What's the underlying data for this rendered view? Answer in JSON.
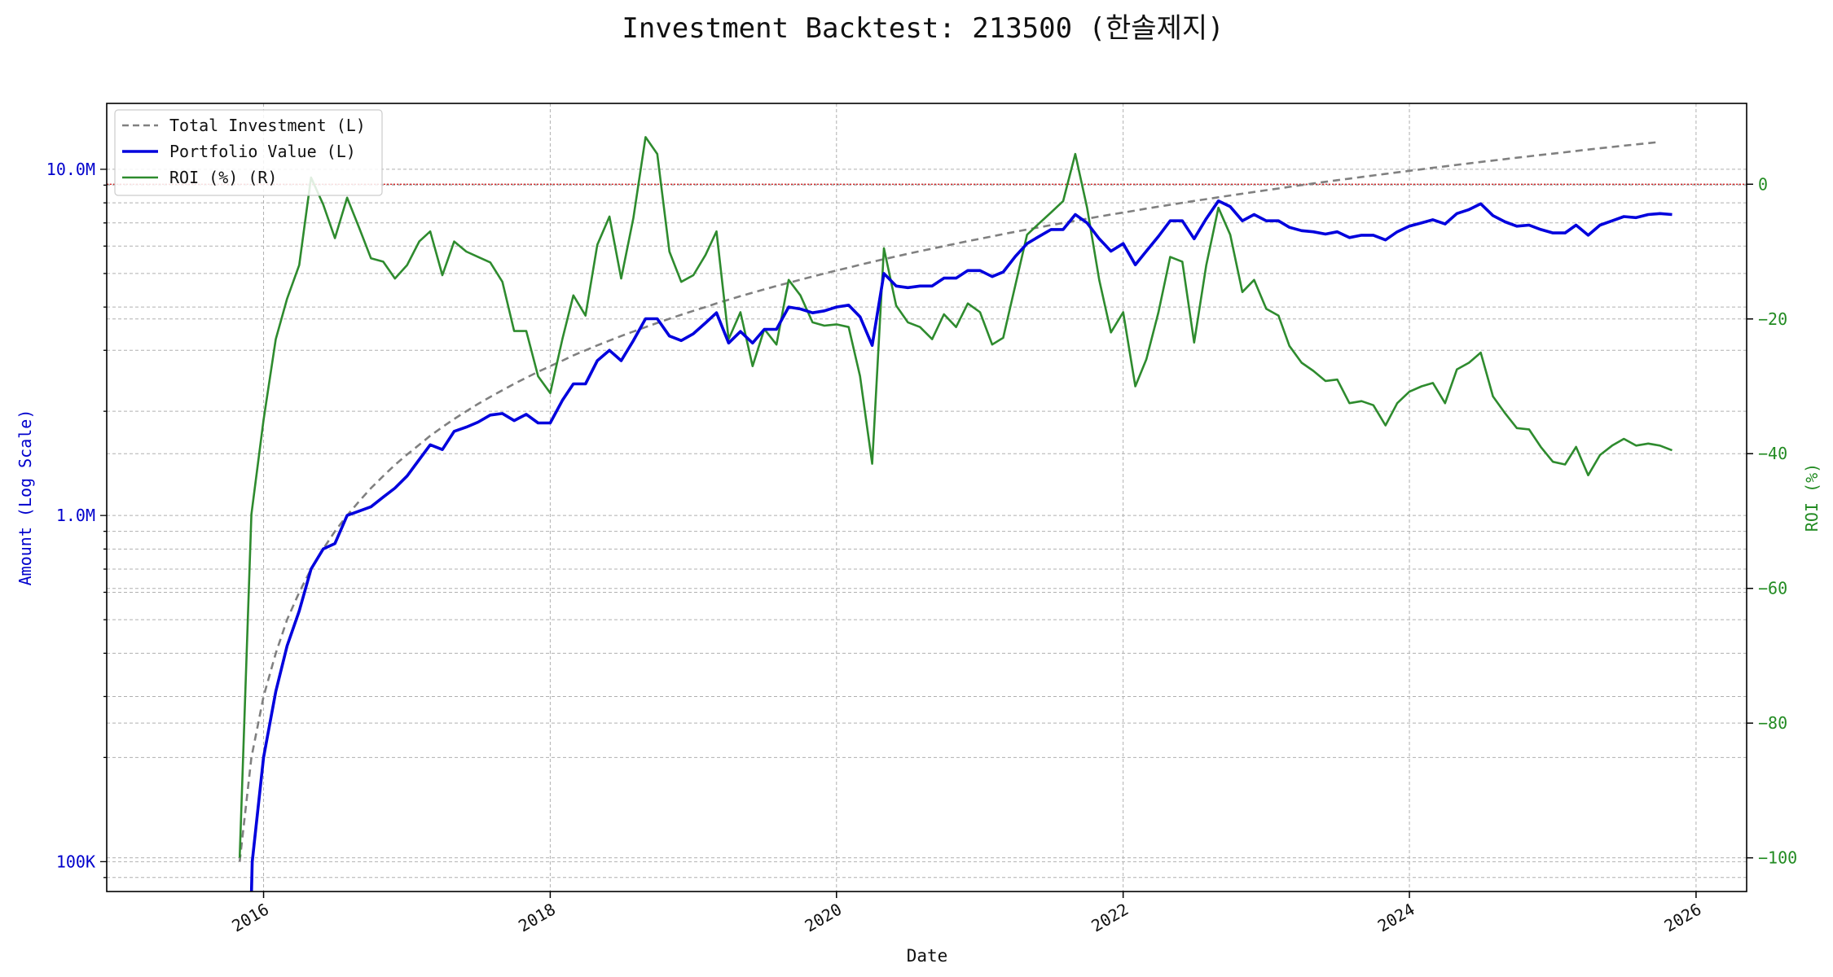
{
  "chart_data": {
    "type": "line",
    "title": "Investment Backtest: 213500 (한솔제지)",
    "xlabel": "Date",
    "ylabel_left": "Amount (Log Scale)",
    "ylabel_right": "ROI (%)",
    "x_range": [
      "2014-11-27",
      "2026-05-10"
    ],
    "y_left_scale": "log",
    "y_left_range": [
      82000,
      15500000
    ],
    "y_right_range": [
      -105,
      12
    ],
    "y_left_ticks": [
      {
        "value": 100000,
        "label": "100K"
      },
      {
        "value": 1000000,
        "label": "1.0M"
      },
      {
        "value": 10000000,
        "label": "10.0M"
      }
    ],
    "y_right_ticks": [
      {
        "value": 0,
        "label": "0"
      },
      {
        "value": -20,
        "label": "−20"
      },
      {
        "value": -40,
        "label": "−40"
      },
      {
        "value": -60,
        "label": "−60"
      },
      {
        "value": -80,
        "label": "−80"
      },
      {
        "value": -100,
        "label": "−100"
      }
    ],
    "x_ticks": [
      {
        "value": "2016-01-01",
        "label": "2016"
      },
      {
        "value": "2018-01-01",
        "label": "2018"
      },
      {
        "value": "2020-01-01",
        "label": "2020"
      },
      {
        "value": "2022-01-01",
        "label": "2022"
      },
      {
        "value": "2024-01-01",
        "label": "2024"
      },
      {
        "value": "2026-01-01",
        "label": "2026"
      }
    ],
    "grid": true,
    "legend_position": "top-left",
    "reference_line": {
      "axis": "right",
      "value": 0,
      "color": "#d62728",
      "style": "dotted"
    },
    "colors": {
      "left_axis": "#0000cc",
      "right_axis": "#228b22",
      "total_investment": "#808080",
      "portfolio": "#0000dd",
      "roi": "#2e8b2e"
    },
    "series": [
      {
        "name": "Total Investment (L)",
        "axis": "left",
        "style": "dashed",
        "start_date": "2015-11-01",
        "step_months": 1,
        "monthly_increment": 100000,
        "values_start": 100000,
        "values_end": 12000000
      },
      {
        "name": "Portfolio Value (L)",
        "axis": "left",
        "style": "solid",
        "points": [
          [
            "2015-12-01",
            80000
          ],
          [
            "2015-12-03",
            100000
          ],
          [
            "2016-01-01",
            200000
          ],
          [
            "2016-02-01",
            310000
          ],
          [
            "2016-03-01",
            420000
          ],
          [
            "2016-04-01",
            530000
          ],
          [
            "2016-05-01",
            700000
          ],
          [
            "2016-06-01",
            800000
          ],
          [
            "2016-07-01",
            830000
          ],
          [
            "2016-08-01",
            1000000
          ],
          [
            "2016-09-01",
            1030000
          ],
          [
            "2016-10-01",
            1060000
          ],
          [
            "2016-11-01",
            1130000
          ],
          [
            "2016-12-01",
            1200000
          ],
          [
            "2017-01-01",
            1300000
          ],
          [
            "2017-02-01",
            1450000
          ],
          [
            "2017-03-01",
            1600000
          ],
          [
            "2017-04-01",
            1550000
          ],
          [
            "2017-05-01",
            1750000
          ],
          [
            "2017-06-01",
            1800000
          ],
          [
            "2017-07-01",
            1860000
          ],
          [
            "2017-08-01",
            1950000
          ],
          [
            "2017-09-01",
            1970000
          ],
          [
            "2017-10-01",
            1880000
          ],
          [
            "2017-11-01",
            1960000
          ],
          [
            "2017-12-01",
            1850000
          ],
          [
            "2018-01-01",
            1850000
          ],
          [
            "2018-02-01",
            2150000
          ],
          [
            "2018-03-01",
            2400000
          ],
          [
            "2018-04-01",
            2400000
          ],
          [
            "2018-05-01",
            2800000
          ],
          [
            "2018-06-01",
            3000000
          ],
          [
            "2018-07-01",
            2800000
          ],
          [
            "2018-08-01",
            3200000
          ],
          [
            "2018-09-01",
            3700000
          ],
          [
            "2018-10-01",
            3700000
          ],
          [
            "2018-11-01",
            3300000
          ],
          [
            "2018-12-01",
            3200000
          ],
          [
            "2019-01-01",
            3350000
          ],
          [
            "2019-02-01",
            3600000
          ],
          [
            "2019-03-01",
            3850000
          ],
          [
            "2019-04-01",
            3150000
          ],
          [
            "2019-05-01",
            3400000
          ],
          [
            "2019-06-01",
            3150000
          ],
          [
            "2019-07-01",
            3450000
          ],
          [
            "2019-08-01",
            3450000
          ],
          [
            "2019-09-01",
            4000000
          ],
          [
            "2019-10-01",
            3950000
          ],
          [
            "2019-11-01",
            3850000
          ],
          [
            "2019-12-01",
            3900000
          ],
          [
            "2020-01-01",
            4000000
          ],
          [
            "2020-02-01",
            4050000
          ],
          [
            "2020-03-01",
            3750000
          ],
          [
            "2020-04-01",
            3100000
          ],
          [
            "2020-05-01",
            5000000
          ],
          [
            "2020-06-01",
            4600000
          ],
          [
            "2020-07-01",
            4550000
          ],
          [
            "2020-08-01",
            4600000
          ],
          [
            "2020-09-01",
            4600000
          ],
          [
            "2020-10-01",
            4850000
          ],
          [
            "2020-11-01",
            4850000
          ],
          [
            "2020-12-01",
            5100000
          ],
          [
            "2021-01-01",
            5100000
          ],
          [
            "2021-02-01",
            4900000
          ],
          [
            "2021-03-01",
            5050000
          ],
          [
            "2021-04-01",
            5600000
          ],
          [
            "2021-05-01",
            6100000
          ],
          [
            "2021-06-01",
            6400000
          ],
          [
            "2021-07-01",
            6700000
          ],
          [
            "2021-08-01",
            6700000
          ],
          [
            "2021-09-01",
            7400000
          ],
          [
            "2021-10-01",
            7000000
          ],
          [
            "2021-11-01",
            6300000
          ],
          [
            "2021-12-01",
            5800000
          ],
          [
            "2022-01-01",
            6100000
          ],
          [
            "2022-02-01",
            5300000
          ],
          [
            "2022-03-01",
            5800000
          ],
          [
            "2022-04-01",
            6400000
          ],
          [
            "2022-05-01",
            7100000
          ],
          [
            "2022-06-01",
            7100000
          ],
          [
            "2022-07-01",
            6300000
          ],
          [
            "2022-08-01",
            7200000
          ],
          [
            "2022-09-01",
            8100000
          ],
          [
            "2022-10-01",
            7800000
          ],
          [
            "2022-11-01",
            7100000
          ],
          [
            "2022-12-01",
            7400000
          ],
          [
            "2023-01-01",
            7100000
          ],
          [
            "2023-02-01",
            7100000
          ],
          [
            "2023-03-01",
            6800000
          ],
          [
            "2023-04-01",
            6650000
          ],
          [
            "2023-05-01",
            6600000
          ],
          [
            "2023-06-01",
            6500000
          ],
          [
            "2023-07-01",
            6600000
          ],
          [
            "2023-08-01",
            6350000
          ],
          [
            "2023-09-01",
            6450000
          ],
          [
            "2023-10-01",
            6450000
          ],
          [
            "2023-11-01",
            6250000
          ],
          [
            "2023-12-01",
            6600000
          ],
          [
            "2024-01-01",
            6850000
          ],
          [
            "2024-02-01",
            7000000
          ],
          [
            "2024-03-01",
            7150000
          ],
          [
            "2024-04-01",
            6950000
          ],
          [
            "2024-05-01",
            7450000
          ],
          [
            "2024-06-01",
            7650000
          ],
          [
            "2024-07-01",
            7950000
          ],
          [
            "2024-08-01",
            7350000
          ],
          [
            "2024-09-01",
            7050000
          ],
          [
            "2024-10-01",
            6850000
          ],
          [
            "2024-11-01",
            6900000
          ],
          [
            "2024-12-01",
            6700000
          ],
          [
            "2025-01-01",
            6550000
          ],
          [
            "2025-02-01",
            6550000
          ],
          [
            "2025-03-01",
            6900000
          ],
          [
            "2025-04-01",
            6450000
          ],
          [
            "2025-05-01",
            6900000
          ],
          [
            "2025-06-01",
            7100000
          ],
          [
            "2025-07-01",
            7300000
          ],
          [
            "2025-08-01",
            7250000
          ],
          [
            "2025-09-01",
            7400000
          ],
          [
            "2025-10-01",
            7450000
          ],
          [
            "2025-11-01",
            7400000
          ]
        ]
      },
      {
        "name": "ROI (%) (R)",
        "axis": "right",
        "style": "solid",
        "points": [
          [
            "2015-11-01",
            -100
          ],
          [
            "2015-12-01",
            -49
          ],
          [
            "2016-01-01",
            -35
          ],
          [
            "2016-02-01",
            -23
          ],
          [
            "2016-03-01",
            -17
          ],
          [
            "2016-04-01",
            -12
          ],
          [
            "2016-05-01",
            1
          ],
          [
            "2016-06-01",
            -3
          ],
          [
            "2016-07-01",
            -8
          ],
          [
            "2016-08-01",
            -2
          ],
          [
            "2016-09-01",
            -6.5
          ],
          [
            "2016-10-01",
            -11
          ],
          [
            "2016-11-01",
            -11.5
          ],
          [
            "2016-12-01",
            -14
          ],
          [
            "2017-01-01",
            -12
          ],
          [
            "2017-02-01",
            -8.5
          ],
          [
            "2017-03-01",
            -7
          ],
          [
            "2017-04-01",
            -13.5
          ],
          [
            "2017-05-01",
            -8.5
          ],
          [
            "2017-06-01",
            -10
          ],
          [
            "2017-07-01",
            -10.8
          ],
          [
            "2017-08-01",
            -11.6
          ],
          [
            "2017-09-01",
            -14.5
          ],
          [
            "2017-10-01",
            -21.8
          ],
          [
            "2017-11-01",
            -21.8
          ],
          [
            "2017-12-01",
            -28.5
          ],
          [
            "2018-01-01",
            -31
          ],
          [
            "2018-02-01",
            -23
          ],
          [
            "2018-03-01",
            -16.5
          ],
          [
            "2018-04-01",
            -19.5
          ],
          [
            "2018-05-01",
            -9
          ],
          [
            "2018-06-01",
            -4.8
          ],
          [
            "2018-07-01",
            -14
          ],
          [
            "2018-08-01",
            -5
          ],
          [
            "2018-09-01",
            7
          ],
          [
            "2018-10-01",
            4.5
          ],
          [
            "2018-11-01",
            -10
          ],
          [
            "2018-12-01",
            -14.5
          ],
          [
            "2019-01-01",
            -13.5
          ],
          [
            "2019-02-01",
            -10.5
          ],
          [
            "2019-03-01",
            -7
          ],
          [
            "2019-04-01",
            -23
          ],
          [
            "2019-05-01",
            -19
          ],
          [
            "2019-06-01",
            -27
          ],
          [
            "2019-07-01",
            -21.5
          ],
          [
            "2019-08-01",
            -23.8
          ],
          [
            "2019-09-01",
            -14.2
          ],
          [
            "2019-10-01",
            -16.5
          ],
          [
            "2019-11-01",
            -20.5
          ],
          [
            "2019-12-01",
            -21
          ],
          [
            "2020-01-01",
            -20.8
          ],
          [
            "2020-02-01",
            -21.2
          ],
          [
            "2020-03-01",
            -28.5
          ],
          [
            "2020-04-01",
            -41.5
          ],
          [
            "2020-05-01",
            -9.5
          ],
          [
            "2020-06-01",
            -18
          ],
          [
            "2020-07-01",
            -20.5
          ],
          [
            "2020-08-01",
            -21.2
          ],
          [
            "2020-09-01",
            -23
          ],
          [
            "2020-10-01",
            -19.3
          ],
          [
            "2020-11-01",
            -21.2
          ],
          [
            "2020-12-01",
            -17.7
          ],
          [
            "2021-01-01",
            -19
          ],
          [
            "2021-02-01",
            -23.8
          ],
          [
            "2021-03-01",
            -22.8
          ],
          [
            "2021-04-01",
            -15
          ],
          [
            "2021-05-01",
            -7.5
          ],
          [
            "2021-06-01",
            -5.8
          ],
          [
            "2021-07-01",
            -4.2
          ],
          [
            "2021-08-01",
            -2.5
          ],
          [
            "2021-09-01",
            4.5
          ],
          [
            "2021-10-01",
            -3.5
          ],
          [
            "2021-11-01",
            -14.2
          ],
          [
            "2021-12-01",
            -22
          ],
          [
            "2022-01-01",
            -19
          ],
          [
            "2022-02-01",
            -30
          ],
          [
            "2022-03-01",
            -26
          ],
          [
            "2022-04-01",
            -19
          ],
          [
            "2022-05-01",
            -10.8
          ],
          [
            "2022-06-01",
            -11.5
          ],
          [
            "2022-07-01",
            -23.5
          ],
          [
            "2022-08-01",
            -12
          ],
          [
            "2022-09-01",
            -3.5
          ],
          [
            "2022-10-01",
            -7.5
          ],
          [
            "2022-11-01",
            -16
          ],
          [
            "2022-12-01",
            -14.2
          ],
          [
            "2023-01-01",
            -18.5
          ],
          [
            "2023-02-01",
            -19.5
          ],
          [
            "2023-03-01",
            -24
          ],
          [
            "2023-04-01",
            -26.5
          ],
          [
            "2023-05-01",
            -27.7
          ],
          [
            "2023-06-01",
            -29.2
          ],
          [
            "2023-07-01",
            -29
          ],
          [
            "2023-08-01",
            -32.5
          ],
          [
            "2023-09-01",
            -32.2
          ],
          [
            "2023-10-01",
            -32.8
          ],
          [
            "2023-11-01",
            -35.8
          ],
          [
            "2023-12-01",
            -32.5
          ],
          [
            "2024-01-01",
            -30.8
          ],
          [
            "2024-02-01",
            -30
          ],
          [
            "2024-03-01",
            -29.5
          ],
          [
            "2024-04-01",
            -32.5
          ],
          [
            "2024-05-01",
            -27.5
          ],
          [
            "2024-06-01",
            -26.5
          ],
          [
            "2024-07-01",
            -25
          ],
          [
            "2024-08-01",
            -31.5
          ],
          [
            "2024-09-01",
            -34
          ],
          [
            "2024-10-01",
            -36.2
          ],
          [
            "2024-11-01",
            -36.4
          ],
          [
            "2024-12-01",
            -39
          ],
          [
            "2025-01-01",
            -41.2
          ],
          [
            "2025-02-01",
            -41.6
          ],
          [
            "2025-03-01",
            -39
          ],
          [
            "2025-04-01",
            -43.2
          ],
          [
            "2025-05-01",
            -40.2
          ],
          [
            "2025-06-01",
            -38.8
          ],
          [
            "2025-07-01",
            -37.8
          ],
          [
            "2025-08-01",
            -38.8
          ],
          [
            "2025-09-01",
            -38.5
          ],
          [
            "2025-10-01",
            -38.8
          ],
          [
            "2025-11-01",
            -39.5
          ]
        ]
      }
    ]
  }
}
